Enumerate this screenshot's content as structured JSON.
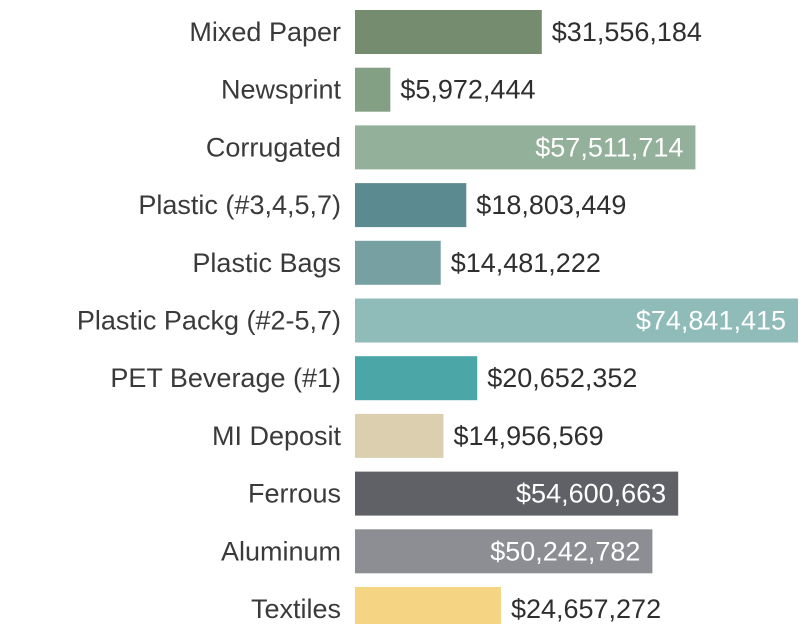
{
  "chart_data": {
    "type": "bar",
    "orientation": "horizontal",
    "categories": [
      "Mixed Paper",
      "Newsprint",
      "Corrugated",
      "Plastic (#3,4,5,7)",
      "Plastic Bags",
      "Plastic Packg (#2-5,7)",
      "PET Beverage (#1)",
      "MI Deposit",
      "Ferrous",
      "Aluminum",
      "Textiles"
    ],
    "values": [
      31556184,
      5972444,
      57511714,
      18803449,
      14481222,
      74841415,
      20652352,
      14956569,
      54600663,
      50242782,
      24657272
    ],
    "value_labels": [
      "$31,556,184",
      "$5,972,444",
      "$57,511,714",
      "$18,803,449",
      "$14,481,222",
      "$74,841,415",
      "$20,652,352",
      "$14,956,569",
      "$54,600,663",
      "$50,242,782",
      "$24,657,272"
    ],
    "label_inside": [
      false,
      false,
      true,
      false,
      false,
      true,
      false,
      false,
      true,
      true,
      false
    ],
    "colors": [
      "#758c6f",
      "#84a084",
      "#93b09a",
      "#5b8a90",
      "#77a0a2",
      "#8fbcb9",
      "#4ba6a8",
      "#dccfaf",
      "#5f6166",
      "#8c8e94",
      "#f5d583"
    ],
    "title": "",
    "xlabel": "",
    "ylabel": "",
    "grid": false,
    "legend": "none"
  }
}
